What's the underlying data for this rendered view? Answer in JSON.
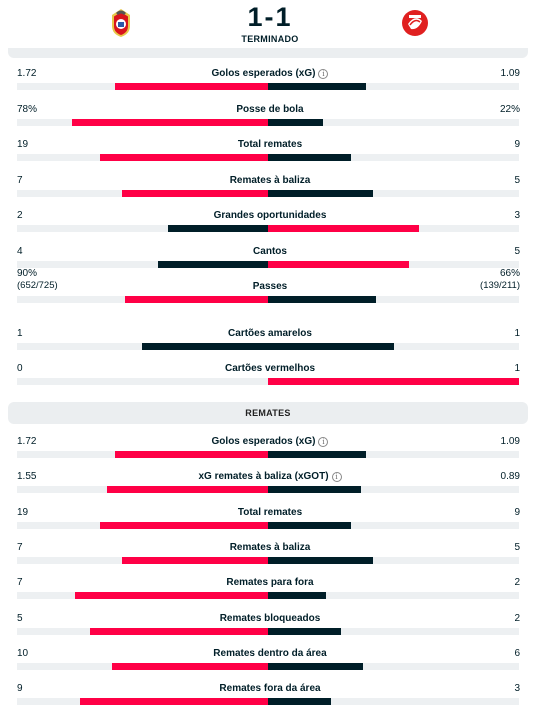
{
  "match": {
    "score": "1-1",
    "status": "TERMINADO",
    "home_logo": "benfica-crest",
    "away_logo": "gil-vicente-crest"
  },
  "colors": {
    "winner": "#ff0046",
    "loser": "#001e28",
    "track": "#edf0f2",
    "panel": "#ebeef0"
  },
  "section_header": "REMATES",
  "stats": [
    {
      "label": "Golos esperados (xG)",
      "info": true,
      "home": "1.72",
      "away": "1.09",
      "home_share": 0.61,
      "away_share": 0.39,
      "home_better": true
    },
    {
      "label": "Posse de bola",
      "home": "78%",
      "away": "22%",
      "home_share": 0.78,
      "away_share": 0.22,
      "home_better": true
    },
    {
      "label": "Total remates",
      "home": "19",
      "away": "9",
      "home_share": 0.67,
      "away_share": 0.33,
      "home_better": true
    },
    {
      "label": "Remates à baliza",
      "home": "7",
      "away": "5",
      "home_share": 0.58,
      "away_share": 0.42,
      "home_better": false
    },
    {
      "label": "Grandes oportunidades",
      "home": "2",
      "away": "3",
      "home_share": 0.4,
      "away_share": 0.6,
      "home_better": false
    },
    {
      "label": "Cantos",
      "home": "4",
      "away": "5",
      "home_share": 0.44,
      "away_share": 0.56,
      "home_better": false
    },
    {
      "label": "Passes",
      "home": "90%",
      "away": "66%",
      "home_sub": "(652/725)",
      "away_sub": "(139/211)",
      "home_share": 0.57,
      "away_share": 0.43,
      "home_better": true
    },
    {
      "label": "Cartões amarelos",
      "home": "1",
      "away": "1",
      "home_share": 0.5,
      "away_share": 0.5,
      "home_better": false
    },
    {
      "label": "Cartões vermelhos",
      "home": "0",
      "away": "1",
      "home_share": 0.0,
      "away_share": 1.0,
      "home_better": false
    },
    {
      "label": "Golos esperados (xG)",
      "info": true,
      "home": "1.72",
      "away": "1.09",
      "home_share": 0.61,
      "away_share": 0.39,
      "home_better": true
    },
    {
      "label": "xG remates à baliza (xGOT)",
      "info": true,
      "home": "1.55",
      "away": "0.89",
      "home_share": 0.64,
      "away_share": 0.37,
      "home_better": true
    },
    {
      "label": "Total remates",
      "home": "19",
      "away": "9",
      "home_share": 0.67,
      "away_share": 0.33,
      "home_better": true
    },
    {
      "label": "Remates à baliza",
      "home": "7",
      "away": "5",
      "home_share": 0.58,
      "away_share": 0.42,
      "home_better": false
    },
    {
      "label": "Remates para fora",
      "home": "7",
      "away": "2",
      "home_share": 0.77,
      "away_share": 0.23,
      "home_better": true
    },
    {
      "label": "Remates bloqueados",
      "home": "5",
      "away": "2",
      "home_share": 0.71,
      "away_share": 0.29,
      "home_better": true
    },
    {
      "label": "Remates dentro da área",
      "home": "10",
      "away": "6",
      "home_share": 0.62,
      "away_share": 0.38,
      "home_better": true
    },
    {
      "label": "Remates fora da área",
      "home": "9",
      "away": "3",
      "home_share": 0.75,
      "away_share": 0.25,
      "home_better": true
    }
  ]
}
